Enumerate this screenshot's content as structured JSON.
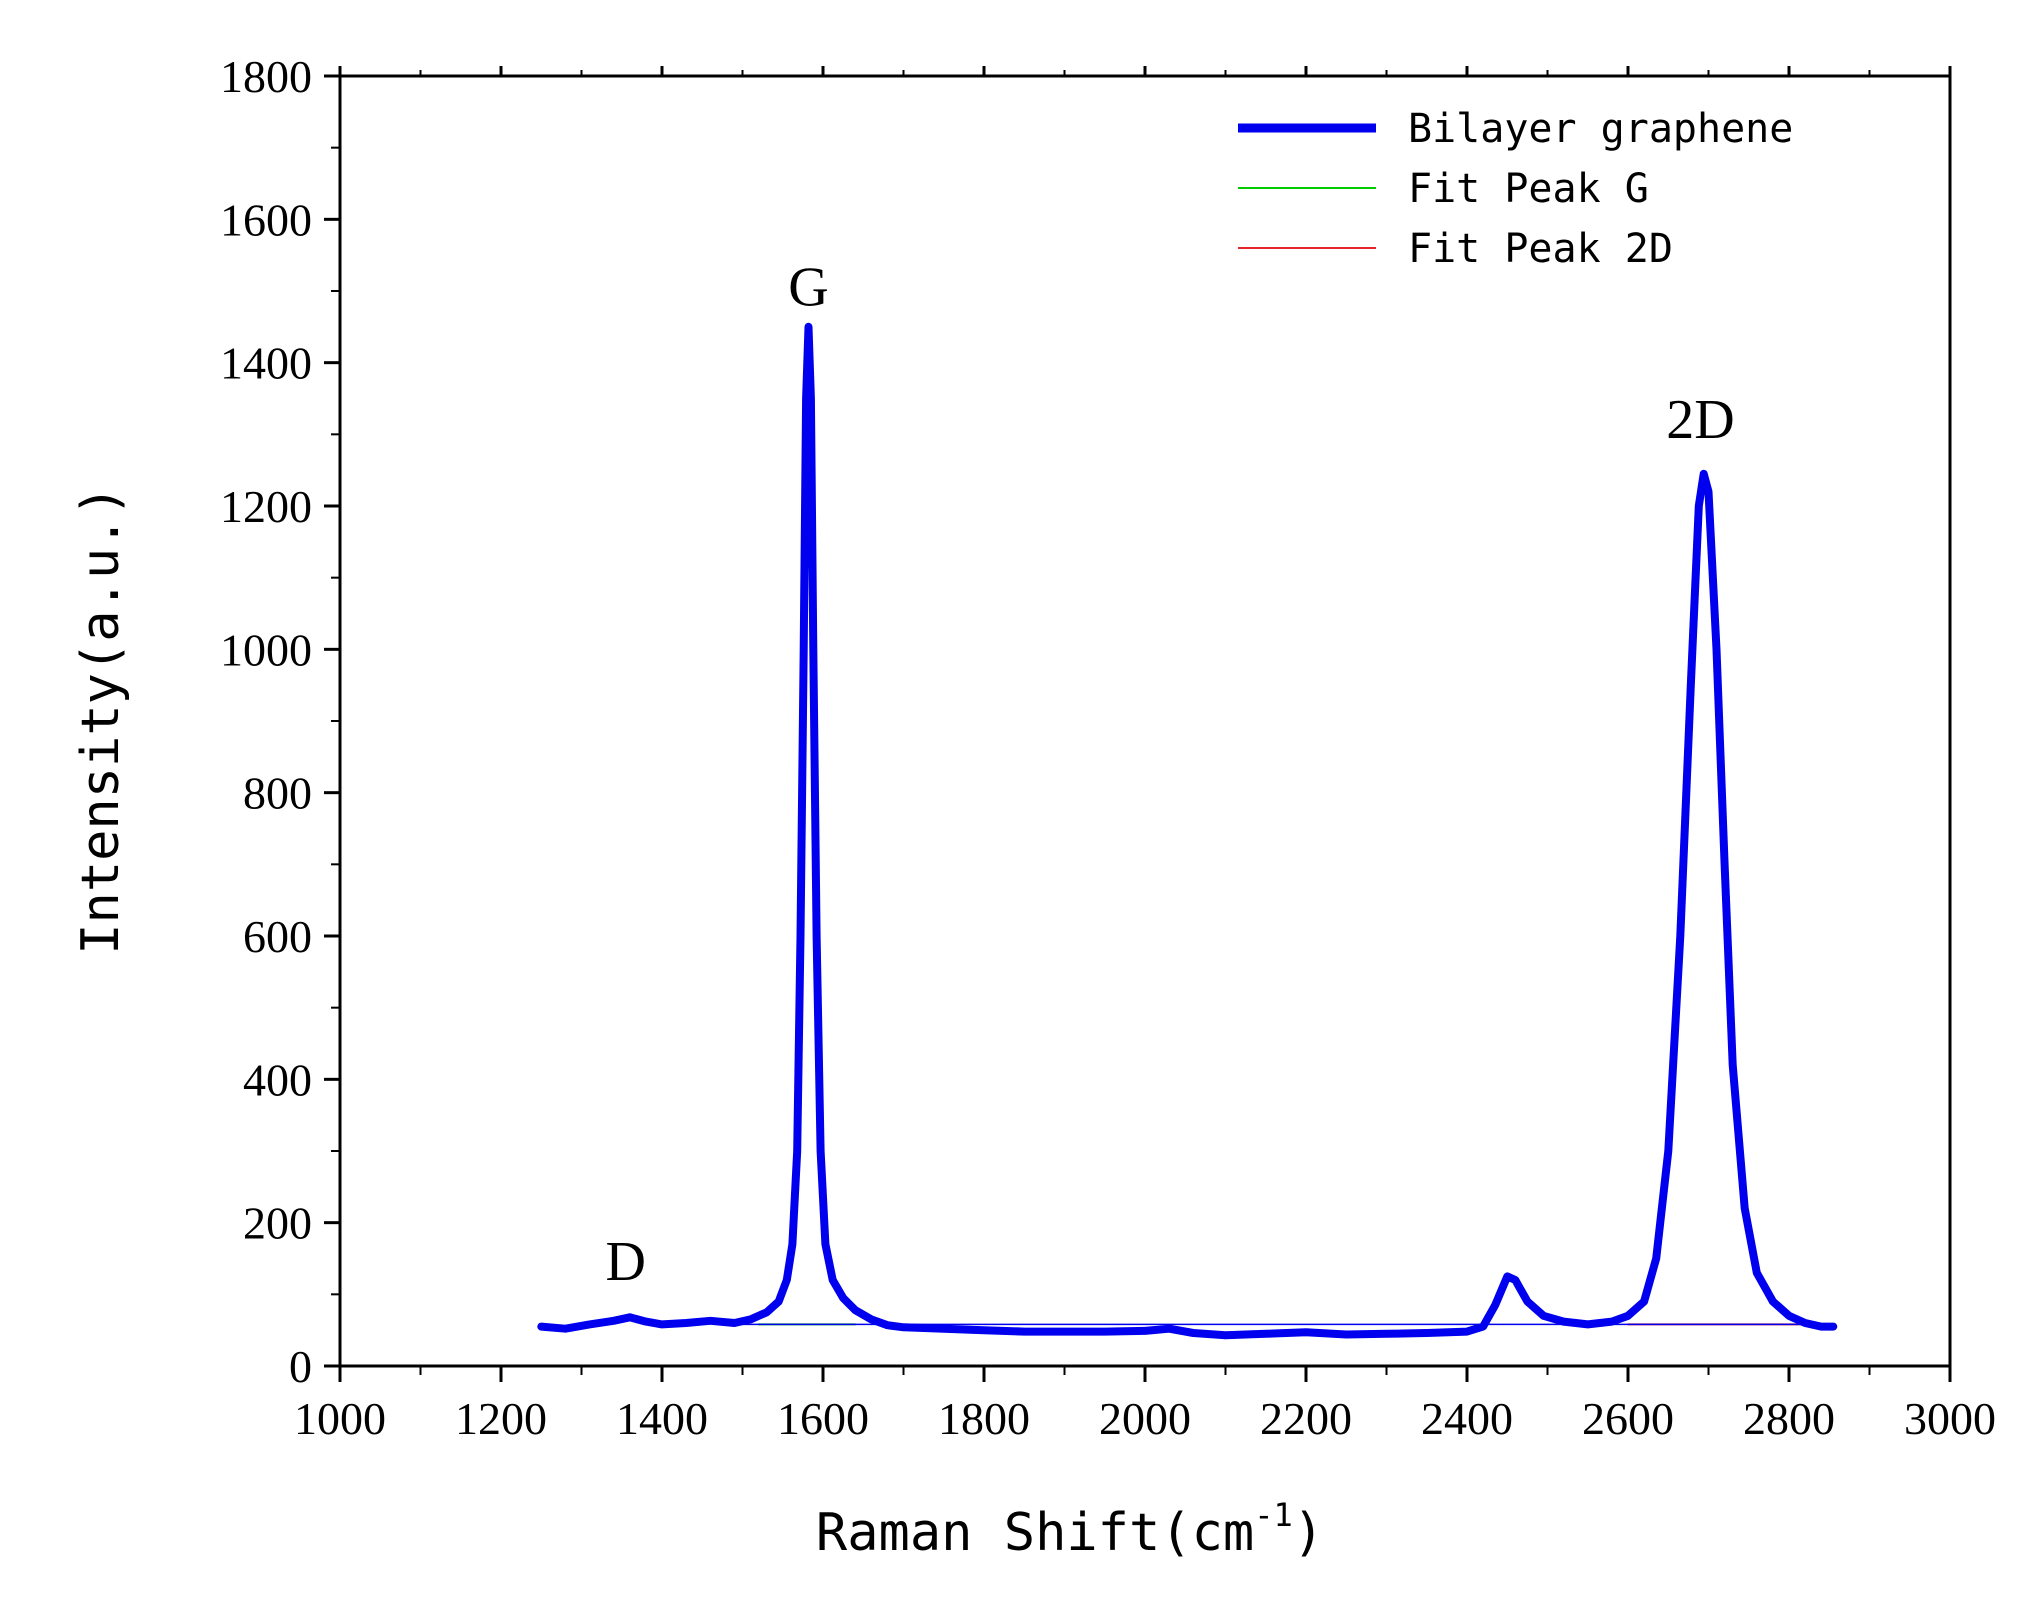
{
  "chart_data": {
    "type": "line",
    "title": "",
    "xlabel": "Raman Shift(cm",
    "xlabel_sup": "-1",
    "xlabel_close": ")",
    "ylabel": "Intensity(a.u.)",
    "xlim": [
      1000,
      3000
    ],
    "ylim": [
      0,
      1800
    ],
    "x_ticks": [
      1000,
      1200,
      1400,
      1600,
      1800,
      2000,
      2200,
      2400,
      2600,
      2800,
      3000
    ],
    "y_ticks": [
      0,
      200,
      400,
      600,
      800,
      1000,
      1200,
      1400,
      1600,
      1800
    ],
    "grid": false,
    "legend_position": "top-right",
    "annotations": [
      {
        "text": "D",
        "x": 1355,
        "y": 120
      },
      {
        "text": "G",
        "x": 1582,
        "y": 1480
      },
      {
        "text": "2D",
        "x": 2690,
        "y": 1295
      }
    ],
    "series": [
      {
        "name": "Bilayer graphene",
        "color": "#0000ee",
        "style": "thick",
        "points": [
          [
            1250,
            55
          ],
          [
            1280,
            52
          ],
          [
            1310,
            58
          ],
          [
            1340,
            63
          ],
          [
            1360,
            68
          ],
          [
            1380,
            62
          ],
          [
            1400,
            58
          ],
          [
            1430,
            60
          ],
          [
            1460,
            63
          ],
          [
            1490,
            60
          ],
          [
            1510,
            65
          ],
          [
            1530,
            75
          ],
          [
            1545,
            90
          ],
          [
            1555,
            120
          ],
          [
            1562,
            170
          ],
          [
            1568,
            300
          ],
          [
            1572,
            600
          ],
          [
            1576,
            1000
          ],
          [
            1579,
            1350
          ],
          [
            1582,
            1450
          ],
          [
            1585,
            1350
          ],
          [
            1588,
            1000
          ],
          [
            1592,
            600
          ],
          [
            1597,
            300
          ],
          [
            1603,
            170
          ],
          [
            1612,
            120
          ],
          [
            1625,
            95
          ],
          [
            1640,
            78
          ],
          [
            1660,
            65
          ],
          [
            1680,
            57
          ],
          [
            1700,
            54
          ],
          [
            1750,
            52
          ],
          [
            1800,
            50
          ],
          [
            1850,
            48
          ],
          [
            1900,
            48
          ],
          [
            1950,
            48
          ],
          [
            2000,
            49
          ],
          [
            2030,
            52
          ],
          [
            2060,
            46
          ],
          [
            2100,
            43
          ],
          [
            2150,
            45
          ],
          [
            2200,
            47
          ],
          [
            2250,
            44
          ],
          [
            2300,
            45
          ],
          [
            2350,
            46
          ],
          [
            2400,
            48
          ],
          [
            2420,
            55
          ],
          [
            2435,
            85
          ],
          [
            2450,
            125
          ],
          [
            2460,
            120
          ],
          [
            2475,
            90
          ],
          [
            2495,
            70
          ],
          [
            2520,
            62
          ],
          [
            2550,
            58
          ],
          [
            2580,
            62
          ],
          [
            2600,
            70
          ],
          [
            2620,
            90
          ],
          [
            2635,
            150
          ],
          [
            2650,
            300
          ],
          [
            2665,
            600
          ],
          [
            2678,
            950
          ],
          [
            2688,
            1200
          ],
          [
            2694,
            1245
          ],
          [
            2700,
            1220
          ],
          [
            2710,
            1000
          ],
          [
            2720,
            700
          ],
          [
            2730,
            420
          ],
          [
            2745,
            220
          ],
          [
            2760,
            130
          ],
          [
            2780,
            90
          ],
          [
            2800,
            70
          ],
          [
            2820,
            60
          ],
          [
            2840,
            55
          ],
          [
            2855,
            55
          ]
        ]
      },
      {
        "name": "Fit Peak G",
        "color": "#00cc00",
        "style": "thin",
        "points": [
          [
            1520,
            58
          ],
          [
            1560,
            58
          ],
          [
            1600,
            58
          ],
          [
            1640,
            58
          ]
        ]
      },
      {
        "name": "Fit Peak 2D",
        "color": "#e8262a",
        "style": "thin",
        "points": [
          [
            2600,
            58
          ],
          [
            2700,
            58
          ],
          [
            2800,
            58
          ],
          [
            2850,
            58
          ]
        ]
      }
    ]
  }
}
